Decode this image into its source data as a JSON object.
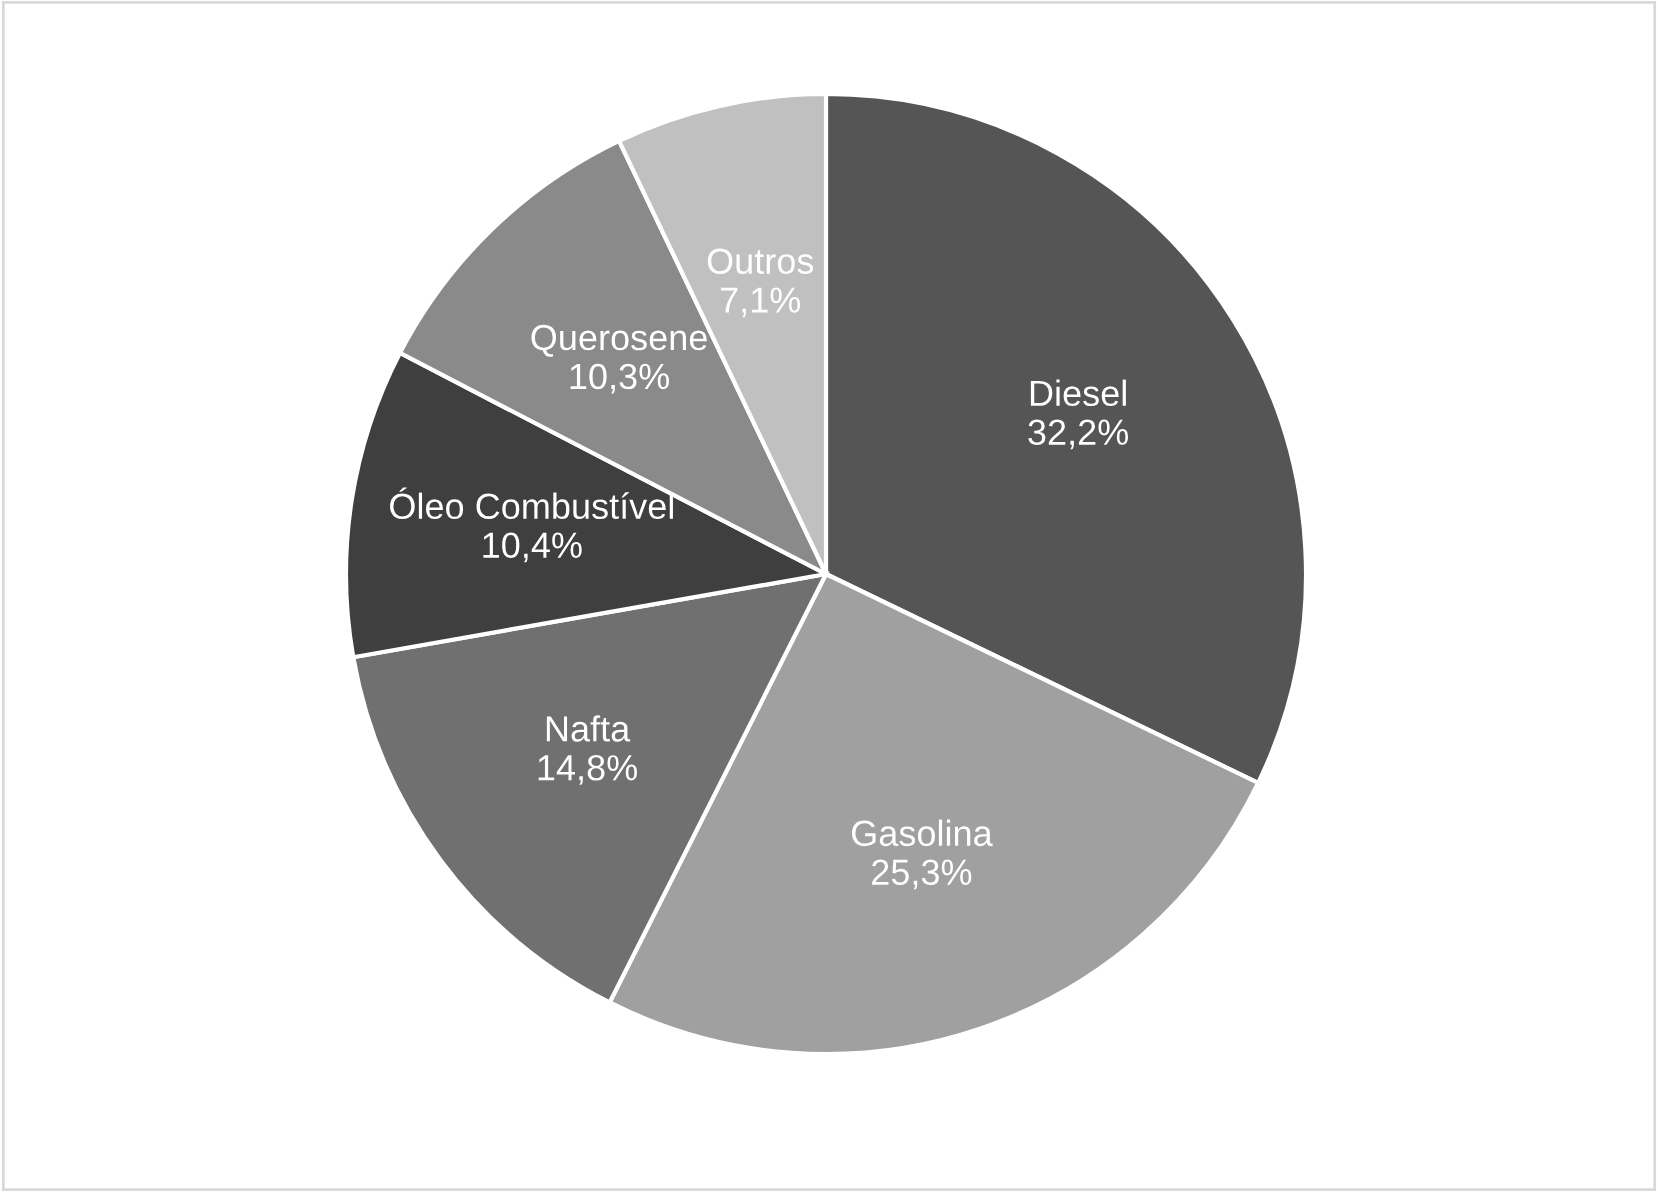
{
  "chart_data": {
    "type": "pie",
    "categories": [
      "Diesel",
      "Gasolina",
      "Nafta",
      "Óleo Combustível",
      "Querosene",
      "Outros"
    ],
    "values": [
      32.2,
      25.3,
      14.8,
      10.4,
      10.3,
      7.1
    ],
    "value_labels": [
      "32,2%",
      "25,3%",
      "14,8%",
      "10,4%",
      "10,3%",
      "7,1%"
    ],
    "colors": [
      "#555555",
      "#a0a0a0",
      "#707070",
      "#3f3f3f",
      "#8a8a8a",
      "#c0c0c0"
    ],
    "legend": false
  }
}
